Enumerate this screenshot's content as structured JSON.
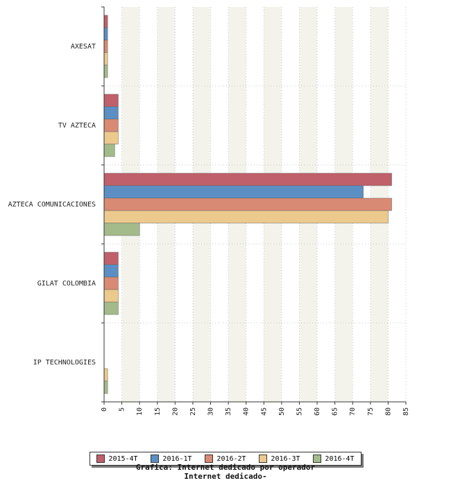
{
  "chart_data": {
    "type": "bar",
    "orientation": "horizontal",
    "categories": [
      "AXESAT",
      "TV AZTECA",
      "AZTECA COMUNICACIONES",
      "GILAT COLOMBIA",
      "IP TECHNOLOGIES"
    ],
    "series": [
      {
        "name": "2015-4T",
        "color": "#c0606a",
        "values": [
          1,
          4,
          81,
          4,
          0
        ]
      },
      {
        "name": "2016-1T",
        "color": "#5b8fc4",
        "values": [
          1,
          4,
          73,
          4,
          0
        ]
      },
      {
        "name": "2016-2T",
        "color": "#d98a74",
        "values": [
          1,
          4,
          81,
          4,
          0
        ]
      },
      {
        "name": "2016-3T",
        "color": "#ecc98c",
        "values": [
          1,
          4,
          80,
          4,
          1
        ]
      },
      {
        "name": "2016-4T",
        "color": "#a3bb8a",
        "values": [
          1,
          3,
          10,
          4,
          1
        ]
      }
    ],
    "xlim": [
      0,
      85
    ],
    "xticks": [
      0,
      5,
      10,
      15,
      20,
      25,
      30,
      35,
      40,
      45,
      50,
      55,
      60,
      65,
      70,
      75,
      80,
      85
    ],
    "grid": true,
    "legend_position": "bottom",
    "title": "Grafica: Internet dedicado por operador",
    "subtitle": "Internet dedicado-"
  }
}
